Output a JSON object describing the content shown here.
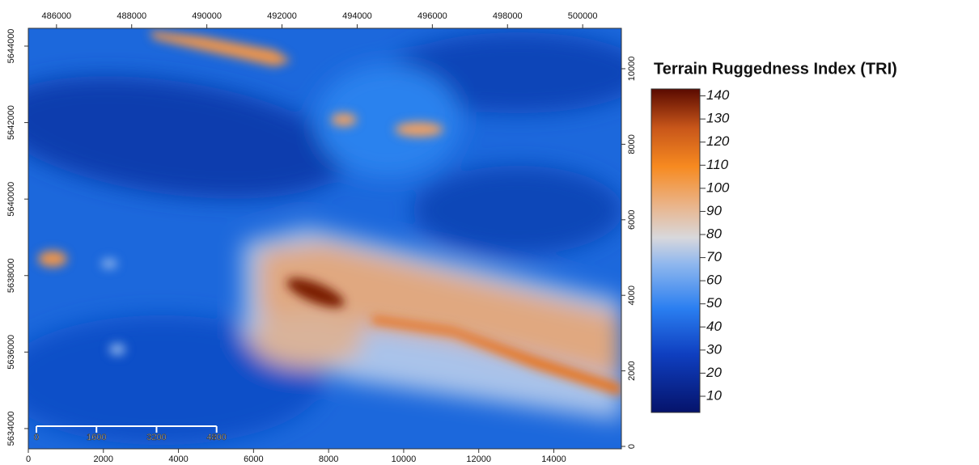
{
  "map": {
    "top_axis": {
      "lim": [
        485250,
        501030
      ],
      "ticks": [
        486000,
        488000,
        490000,
        492000,
        494000,
        496000,
        498000,
        500000
      ]
    },
    "bottom_axis": {
      "lim": [
        0,
        15800
      ],
      "ticks": [
        0,
        2000,
        4000,
        6000,
        8000,
        10000,
        12000,
        14000
      ]
    },
    "left_axis": {
      "lim": [
        5633470,
        5644465
      ],
      "ticks": [
        5634000,
        5636000,
        5638000,
        5640000,
        5642000,
        5644000
      ]
    },
    "right_axis": {
      "lim": [
        -64,
        11070
      ],
      "ticks": [
        0,
        2000,
        4000,
        6000,
        8000,
        10000
      ]
    },
    "scale_bar": {
      "ticks": [
        0,
        1600,
        3200,
        4800
      ]
    }
  },
  "legend": {
    "title": "Terrain Ruggedness Index (TRI)",
    "lim": [
      3,
      143
    ],
    "ticks": [
      10,
      20,
      30,
      40,
      50,
      60,
      70,
      80,
      90,
      100,
      110,
      120,
      130,
      140
    ]
  }
}
